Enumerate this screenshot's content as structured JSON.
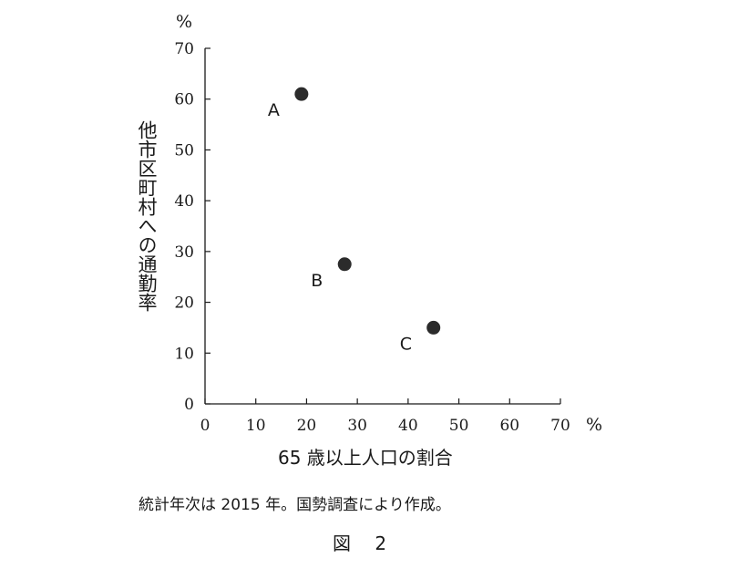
{
  "chart_data": {
    "type": "scatter",
    "xlabel": "65 歳以上人口の割合",
    "ylabel": "他市区町村への通勤率",
    "x_unit": "%",
    "y_unit": "%",
    "xlim": [
      0,
      70
    ],
    "ylim": [
      0,
      70
    ],
    "x_ticks": [
      0,
      10,
      20,
      30,
      40,
      50,
      60,
      70
    ],
    "y_ticks": [
      0,
      10,
      20,
      30,
      40,
      50,
      60,
      70
    ],
    "grid": false,
    "points": [
      {
        "label": "A",
        "x": 19,
        "y": 61
      },
      {
        "label": "B",
        "x": 27.5,
        "y": 27.5
      },
      {
        "label": "C",
        "x": 45,
        "y": 15
      }
    ]
  },
  "note": "統計年次は 2015 年。国勢調査により作成。",
  "figure_caption": "図　 2"
}
